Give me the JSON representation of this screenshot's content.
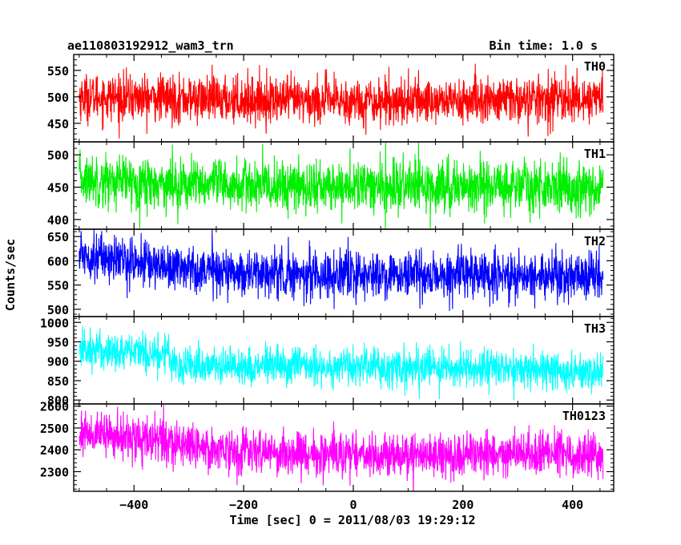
{
  "header": {
    "title": "ae110803192912_wam3_trn",
    "bin_time": "Bin time: 1.0 s"
  },
  "chart_data": {
    "type": "line",
    "xlabel": "Time [sec] 0 = 2011/08/03 19:29:12",
    "ylabel": "Counts/sec",
    "xlim": [
      -510,
      475
    ],
    "x_ticks": [
      -400,
      -200,
      0,
      200,
      400
    ],
    "x_tick_labels": [
      "−400",
      "−200",
      "0",
      "200",
      "400"
    ],
    "bin_seconds": 1.0,
    "x_range": [
      -500,
      455
    ],
    "panels": [
      {
        "name": "TH0",
        "color": "#ff0000",
        "ylim": [
          415,
          580
        ],
        "y_ticks": [
          450,
          500,
          550
        ],
        "trend": [
          [
            -500,
            500
          ],
          [
            -250,
            495
          ],
          [
            0,
            492
          ],
          [
            250,
            493
          ],
          [
            455,
            497
          ]
        ],
        "noise": 22,
        "spread": 60
      },
      {
        "name": "TH1",
        "color": "#00ee00",
        "ylim": [
          385,
          520
        ],
        "y_ticks": [
          400,
          450,
          500
        ],
        "trend": [
          [
            -500,
            462
          ],
          [
            -250,
            452
          ],
          [
            0,
            450
          ],
          [
            250,
            452
          ],
          [
            455,
            450
          ]
        ],
        "noise": 20,
        "spread": 55
      },
      {
        "name": "TH2",
        "color": "#0000ff",
        "ylim": [
          485,
          665
        ],
        "y_ticks": [
          500,
          550,
          600,
          650
        ],
        "trend": [
          [
            -500,
            615
          ],
          [
            -350,
            590
          ],
          [
            -200,
            575
          ],
          [
            0,
            570
          ],
          [
            250,
            568
          ],
          [
            455,
            570
          ]
        ],
        "noise": 24,
        "spread": 70
      },
      {
        "name": "TH3",
        "color": "#00ffff",
        "ylim": [
          790,
          1015
        ],
        "y_ticks": [
          800,
          850,
          900,
          950,
          1000
        ],
        "trend": [
          [
            -500,
            930
          ],
          [
            -340,
            920
          ],
          [
            -320,
            890
          ],
          [
            0,
            885
          ],
          [
            250,
            880
          ],
          [
            455,
            875
          ]
        ],
        "noise": 25,
        "spread": 80
      },
      {
        "name": "TH0123",
        "color": "#ff00ff",
        "ylim": [
          2210,
          2610
        ],
        "y_ticks": [
          2300,
          2400,
          2500,
          2600
        ],
        "trend": [
          [
            -500,
            2480
          ],
          [
            -350,
            2440
          ],
          [
            -200,
            2390
          ],
          [
            0,
            2375
          ],
          [
            250,
            2380
          ],
          [
            455,
            2375
          ]
        ],
        "noise": 50,
        "spread": 150
      }
    ]
  }
}
